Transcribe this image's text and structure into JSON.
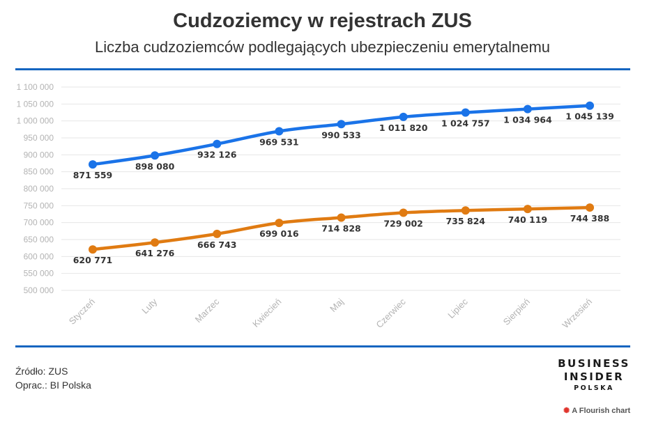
{
  "title": "Cudzoziemcy w rejestrach ZUS",
  "subtitle": "Liczba cudzoziemców podlegających ubezpieczeniu emerytalnemu",
  "source_line1": "Źródło: ZUS",
  "source_line2": "Oprac.: BI Polska",
  "logo": {
    "line1": "BUSINESS",
    "line2": "INSIDER",
    "line3": "POLSKA"
  },
  "flourish_label": "A Flourish chart",
  "colors": {
    "accent_rule": "#1565c0",
    "series_blue": "#1a73e8",
    "series_orange": "#e07b12"
  },
  "chart_data": {
    "type": "line",
    "categories": [
      "Styczeń",
      "Luty",
      "Marzec",
      "Kwiecień",
      "Maj",
      "Czerwiec",
      "Lipiec",
      "Sierpień",
      "Wrzesień"
    ],
    "series": [
      {
        "color": "#1a73e8",
        "values": [
          871559,
          898080,
          932126,
          969531,
          990533,
          1011820,
          1024757,
          1034964,
          1045139
        ],
        "labels": [
          "871 559",
          "898 080",
          "932 126",
          "969 531",
          "990 533",
          "1 011 820",
          "1 024 757",
          "1 034 964",
          "1 045 139"
        ]
      },
      {
        "color": "#e07b12",
        "values": [
          620771,
          641276,
          666743,
          699016,
          714828,
          729002,
          735824,
          740119,
          744388
        ],
        "labels": [
          "620 771",
          "641 276",
          "666 743",
          "699 016",
          "714 828",
          "729 002",
          "735 824",
          "740 119",
          "744 388"
        ]
      }
    ],
    "ylim": [
      500000,
      1100000
    ],
    "yticks": [
      500000,
      550000,
      600000,
      650000,
      700000,
      750000,
      800000,
      850000,
      900000,
      950000,
      1000000,
      1050000,
      1100000
    ],
    "ytick_labels": [
      "500 000",
      "550 000",
      "600 000",
      "650 000",
      "700 000",
      "750 000",
      "800 000",
      "850 000",
      "900 000",
      "950 000",
      "1 000 000",
      "1 050 000",
      "1 100 000"
    ],
    "grid": true,
    "legend": "none"
  }
}
